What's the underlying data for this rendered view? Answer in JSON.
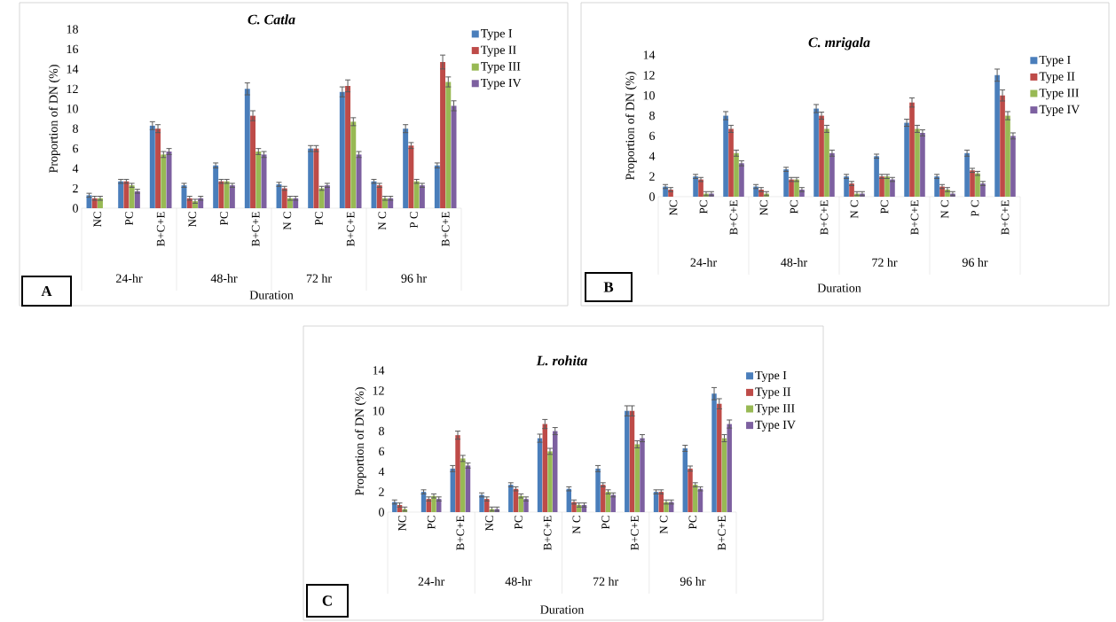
{
  "chart_data": [
    {
      "type": "bar",
      "title": "C. Catla",
      "ylabel": "Proportion of DN (%)",
      "xlabel": "Duration",
      "categories": [
        "NC",
        "PC",
        "B+C+E",
        "NC",
        "PC",
        "B+C+E",
        "N C",
        "PC",
        "B+C+E",
        "N C",
        "P C",
        "B+C+E"
      ],
      "series": [
        {
          "name": "Type I",
          "color": "#4a7ebb",
          "values": [
            1.3,
            2.7,
            8.3,
            2.3,
            4.3,
            12.0,
            2.4,
            6.0,
            11.7,
            2.7,
            8.0,
            4.3
          ],
          "errors": [
            0.2,
            0.2,
            0.4,
            0.2,
            0.25,
            0.6,
            0.2,
            0.3,
            0.5,
            0.2,
            0.4,
            0.25
          ]
        },
        {
          "name": "Type II",
          "color": "#be4b48",
          "values": [
            1.0,
            2.7,
            8.0,
            1.0,
            2.7,
            9.3,
            2.0,
            6.0,
            12.3,
            2.3,
            6.3,
            14.7
          ],
          "errors": [
            0.2,
            0.2,
            0.4,
            0.2,
            0.2,
            0.5,
            0.2,
            0.3,
            0.6,
            0.2,
            0.3,
            0.7
          ]
        },
        {
          "name": "Type III",
          "color": "#98b954",
          "values": [
            1.0,
            2.3,
            5.4,
            0.7,
            2.7,
            5.7,
            1.0,
            2.0,
            8.7,
            1.0,
            2.7,
            12.7
          ],
          "errors": [
            0.2,
            0.2,
            0.3,
            0.2,
            0.2,
            0.3,
            0.2,
            0.2,
            0.4,
            0.2,
            0.2,
            0.5
          ]
        },
        {
          "name": "Type IV",
          "color": "#7d60a0",
          "values": [
            0,
            1.7,
            5.7,
            1.0,
            2.3,
            5.4,
            1.0,
            2.3,
            5.4,
            1.0,
            2.3,
            10.3
          ],
          "errors": [
            null,
            0.2,
            0.3,
            0.2,
            0.2,
            0.3,
            0.2,
            0.2,
            0.3,
            0.2,
            0.2,
            0.5
          ]
        }
      ],
      "ylim": [
        0,
        18
      ],
      "yticks": [
        0,
        2,
        4,
        6,
        8,
        10,
        12,
        14,
        16,
        18
      ],
      "legend": "top right",
      "annotations": [
        "24-hr",
        "48-hr",
        "72 hr",
        "96 hr",
        "A"
      ]
    },
    {
      "type": "bar",
      "title": "C. mrigala",
      "ylabel": "Proportion of DN (%)",
      "xlabel": "Duration",
      "categories": [
        "NC",
        "PC",
        "B+C+E",
        "NC",
        "PC",
        "B+C+E",
        "N C",
        "PC",
        "B+C+E",
        "N C",
        "P C",
        "B+C+E"
      ],
      "series": [
        {
          "name": "Type I",
          "color": "#4a7ebb",
          "values": [
            1.0,
            2.0,
            8.0,
            1.0,
            2.7,
            8.7,
            2.0,
            4.0,
            7.3,
            2.0,
            4.3,
            12.0
          ],
          "errors": [
            0.2,
            0.2,
            0.4,
            0.2,
            0.2,
            0.4,
            0.2,
            0.2,
            0.35,
            0.2,
            0.3,
            0.6
          ]
        },
        {
          "name": "Type II",
          "color": "#be4b48",
          "values": [
            0.7,
            1.7,
            6.7,
            0.7,
            1.7,
            8.0,
            1.3,
            2.0,
            9.3,
            1.0,
            2.6,
            10.0
          ],
          "errors": [
            0.2,
            0.2,
            0.35,
            0.2,
            0.2,
            0.35,
            0.2,
            0.2,
            0.45,
            0.2,
            0.2,
            0.55
          ]
        },
        {
          "name": "Type III",
          "color": "#98b954",
          "values": [
            0,
            0.3,
            4.3,
            0.3,
            1.7,
            6.7,
            0.3,
            2.0,
            6.7,
            0.7,
            2.3,
            8.0
          ],
          "errors": [
            null,
            0.2,
            0.3,
            0.2,
            0.2,
            0.35,
            0.2,
            0.2,
            0.35,
            0.2,
            0.2,
            0.4
          ]
        },
        {
          "name": "Type IV",
          "color": "#7d60a0",
          "values": [
            0,
            0.3,
            3.3,
            0,
            0.7,
            4.3,
            0.3,
            1.7,
            6.3,
            0.3,
            1.3,
            6.0
          ],
          "errors": [
            null,
            0.2,
            0.25,
            null,
            0.2,
            0.3,
            0.2,
            0.2,
            0.3,
            0.2,
            0.2,
            0.3
          ]
        }
      ],
      "ylim": [
        0,
        14
      ],
      "yticks": [
        0,
        2,
        4,
        6,
        8,
        10,
        12,
        14
      ],
      "legend": "top right",
      "annotations": [
        "24-hr",
        "48-hr",
        "72 hr",
        "96 hr",
        "B"
      ]
    },
    {
      "type": "bar",
      "title": "L. rohita",
      "ylabel": "Proportion of DN (%)",
      "xlabel": "Duration",
      "categories": [
        "NC",
        "PC",
        "B+C+E",
        "NC",
        "PC",
        "B+C+E",
        "N C",
        "PC",
        "B+C+E",
        "N C",
        "PC",
        "B+C+E"
      ],
      "series": [
        {
          "name": "Type I",
          "color": "#4a7ebb",
          "values": [
            1.0,
            2.0,
            4.3,
            1.7,
            2.7,
            7.3,
            2.3,
            4.3,
            10.0,
            2.0,
            6.3,
            11.7
          ],
          "errors": [
            0.2,
            0.2,
            0.3,
            0.2,
            0.2,
            0.4,
            0.2,
            0.3,
            0.5,
            0.2,
            0.3,
            0.6
          ]
        },
        {
          "name": "Type II",
          "color": "#be4b48",
          "values": [
            0.7,
            1.3,
            7.6,
            1.3,
            2.3,
            8.7,
            1.0,
            2.7,
            10.0,
            2.0,
            4.3,
            10.7
          ],
          "errors": [
            0.2,
            0.2,
            0.4,
            0.2,
            0.2,
            0.45,
            0.2,
            0.2,
            0.5,
            0.2,
            0.25,
            0.5
          ]
        },
        {
          "name": "Type III",
          "color": "#98b954",
          "values": [
            0.3,
            1.6,
            5.3,
            0.3,
            1.6,
            6.0,
            0.7,
            2.0,
            6.7,
            1.0,
            2.7,
            7.3
          ],
          "errors": [
            0.2,
            0.2,
            0.3,
            0.2,
            0.2,
            0.3,
            0.2,
            0.2,
            0.35,
            0.2,
            0.2,
            0.35
          ]
        },
        {
          "name": "Type IV",
          "color": "#7d60a0",
          "values": [
            0,
            1.3,
            4.6,
            0.3,
            1.3,
            8.0,
            0.7,
            1.7,
            7.3,
            1.0,
            2.3,
            8.7
          ],
          "errors": [
            null,
            0.2,
            0.25,
            0.2,
            0.2,
            0.35,
            0.2,
            0.2,
            0.35,
            0.2,
            0.2,
            0.4
          ]
        }
      ],
      "ylim": [
        0,
        14
      ],
      "yticks": [
        0,
        2,
        4,
        6,
        8,
        10,
        12,
        14
      ],
      "legend": "top right",
      "annotations": [
        "24-hr",
        "48-hr",
        "72 hr",
        "96 hr",
        "C"
      ]
    }
  ]
}
